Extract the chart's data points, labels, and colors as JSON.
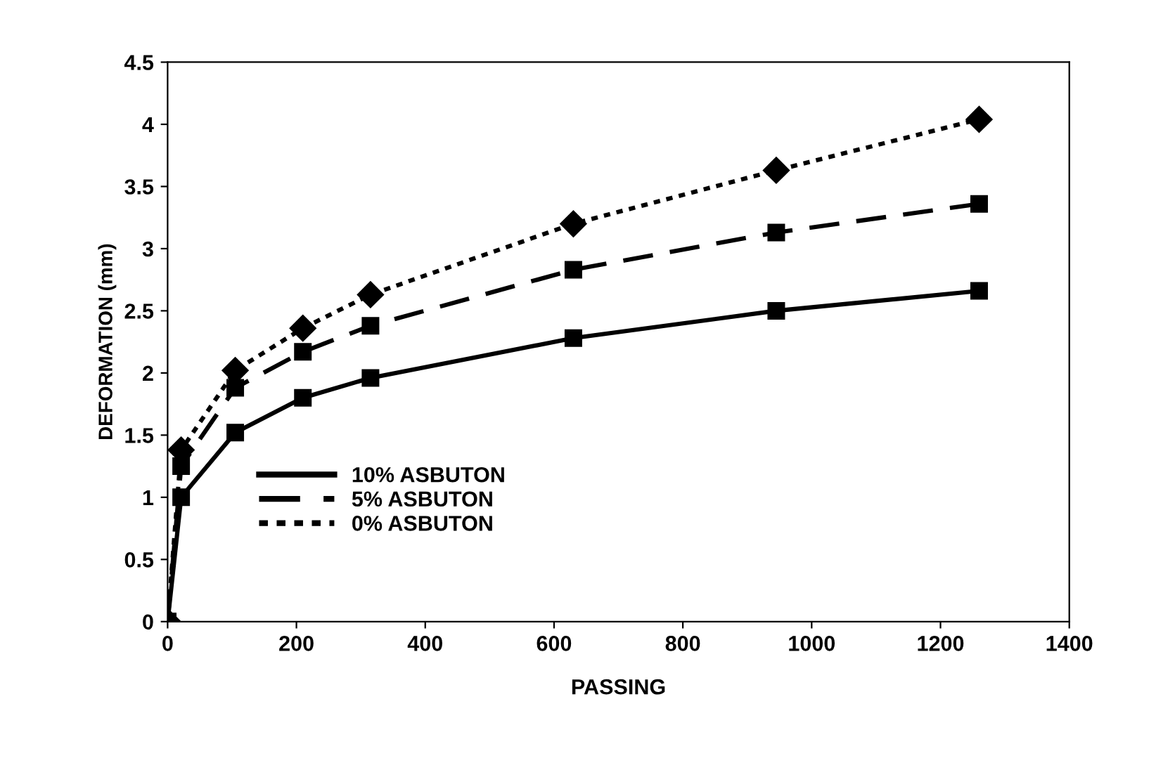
{
  "chart_data": {
    "type": "line",
    "xlabel": "PASSING",
    "ylabel": "DEFORMATION (mm)",
    "x": [
      0,
      21,
      105,
      210,
      315,
      630,
      945,
      1260
    ],
    "series": [
      {
        "name": "10% ASBUTON",
        "color": "#000000",
        "line_style": "solid",
        "marker": "square",
        "values": [
          0,
          1.0,
          1.52,
          1.8,
          1.96,
          2.28,
          2.5,
          2.66
        ]
      },
      {
        "name": "5% ASBUTON",
        "color": "#000000",
        "line_style": "dashed",
        "marker": "square",
        "values": [
          0,
          1.25,
          1.88,
          2.17,
          2.38,
          2.83,
          3.13,
          3.36
        ]
      },
      {
        "name": "0% ASBUTON",
        "color": "#000000",
        "line_style": "dotted",
        "marker": "diamond",
        "values": [
          0,
          1.38,
          2.02,
          2.36,
          2.63,
          3.2,
          3.63,
          4.04
        ]
      }
    ],
    "xlim": [
      0,
      1400
    ],
    "xticks": [
      0,
      200,
      400,
      600,
      800,
      1000,
      1200,
      1400
    ],
    "ylim": [
      0,
      4.5
    ],
    "yticks": [
      0,
      0.5,
      1,
      1.5,
      2,
      2.5,
      3,
      3.5,
      4,
      4.5
    ],
    "grid": false,
    "legend": "left"
  }
}
